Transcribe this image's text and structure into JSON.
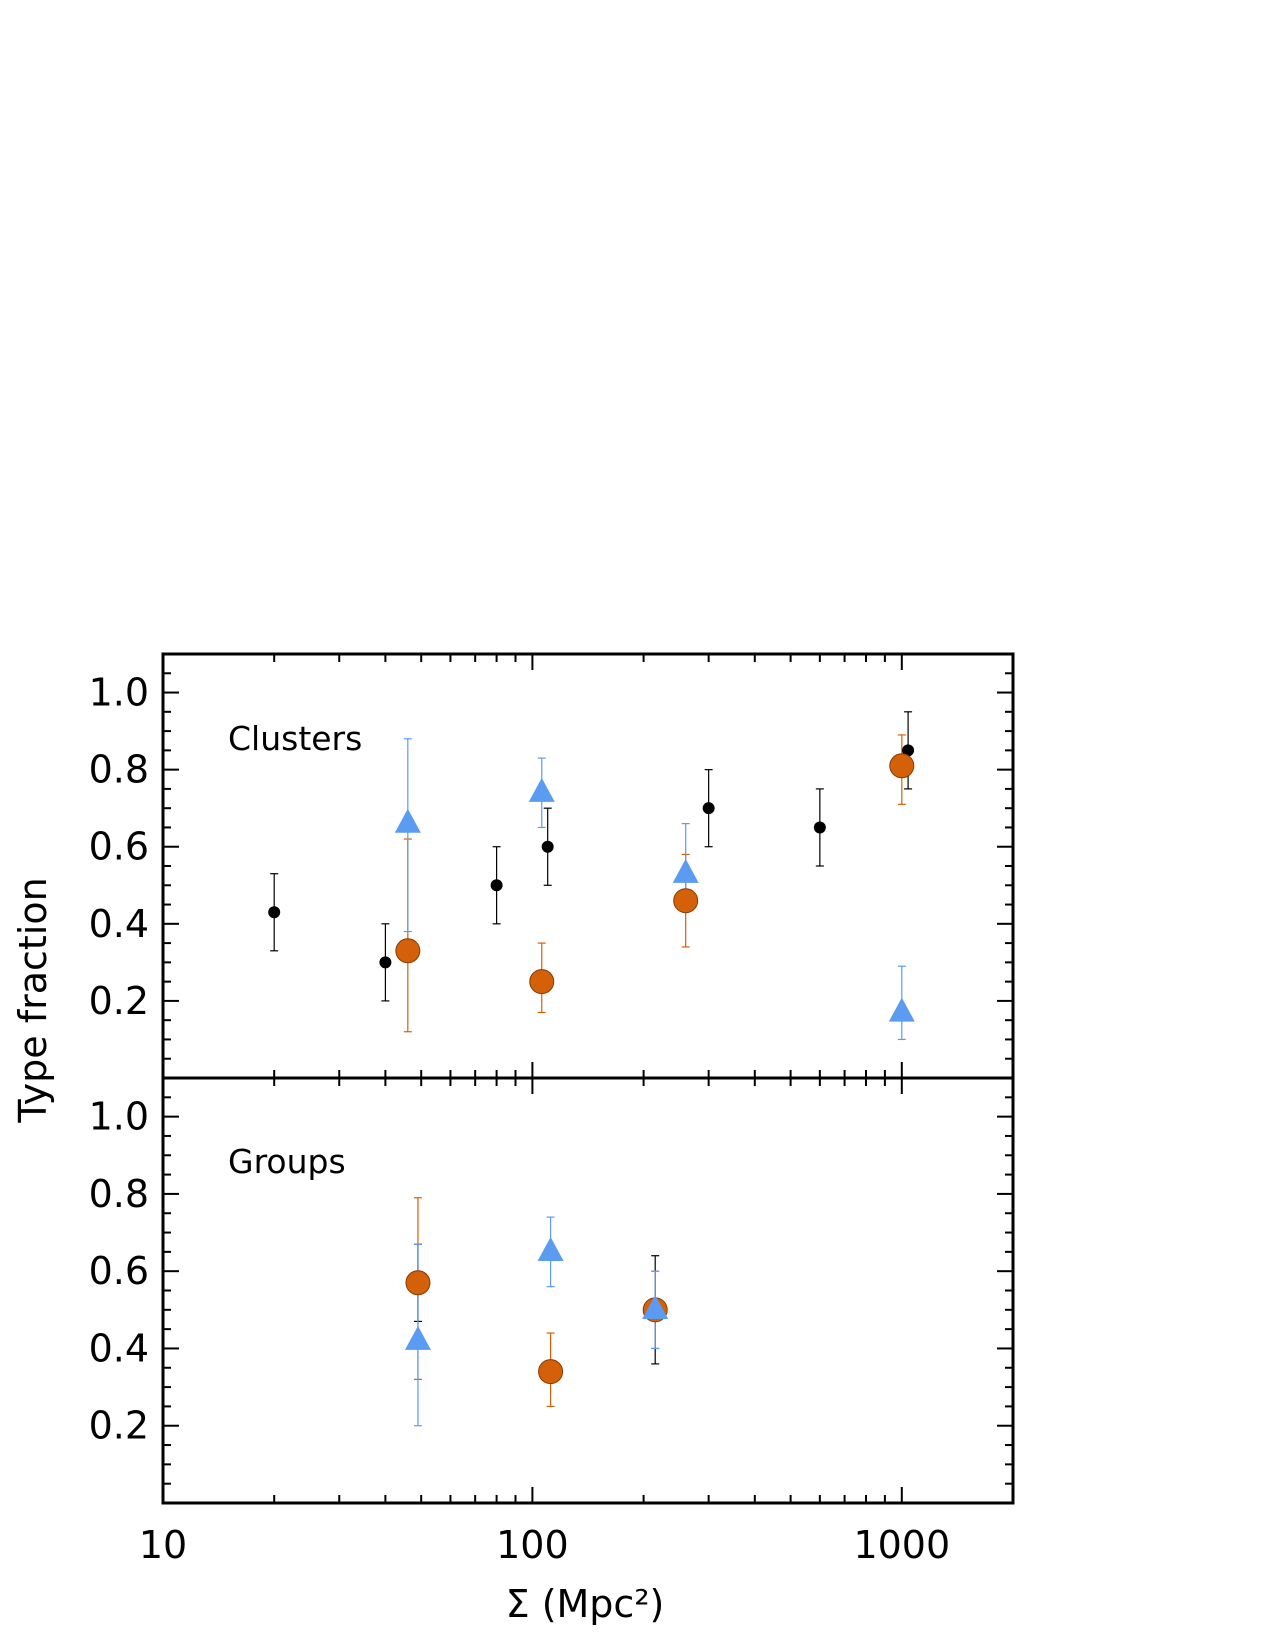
{
  "chart_data": [
    {
      "type": "scatter",
      "panel": "upper",
      "label": "Clusters",
      "xscale": "log",
      "xlim": [
        10,
        2000
      ],
      "ylim": [
        0.0,
        1.1
      ],
      "ylabel": "Type fraction",
      "yticks": [
        "0.2",
        "0.4",
        "0.6",
        "0.8",
        "1.0"
      ],
      "series": [
        {
          "marker": "dot",
          "color": "#000000",
          "points": [
            {
              "x": 20,
              "y": 0.43,
              "lo": 0.33,
              "hi": 0.53
            },
            {
              "x": 40,
              "y": 0.3,
              "lo": 0.2,
              "hi": 0.4
            },
            {
              "x": 80,
              "y": 0.5,
              "lo": 0.4,
              "hi": 0.6
            },
            {
              "x": 110,
              "y": 0.6,
              "lo": 0.5,
              "hi": 0.7
            },
            {
              "x": 300,
              "y": 0.7,
              "lo": 0.6,
              "hi": 0.8
            },
            {
              "x": 600,
              "y": 0.65,
              "lo": 0.55,
              "hi": 0.75
            },
            {
              "x": 1040,
              "y": 0.85,
              "lo": 0.75,
              "hi": 0.95
            }
          ]
        },
        {
          "marker": "circle",
          "color": "#d4600a",
          "points": [
            {
              "x": 46,
              "y": 0.33,
              "lo": 0.12,
              "hi": 0.62
            },
            {
              "x": 106,
              "y": 0.25,
              "lo": 0.17,
              "hi": 0.35
            },
            {
              "x": 260,
              "y": 0.46,
              "lo": 0.34,
              "hi": 0.58
            },
            {
              "x": 1000,
              "y": 0.81,
              "lo": 0.71,
              "hi": 0.89
            }
          ]
        },
        {
          "marker": "triangle",
          "color": "#5b9cf2",
          "points": [
            {
              "x": 46,
              "y": 0.66,
              "lo": 0.38,
              "hi": 0.88
            },
            {
              "x": 106,
              "y": 0.74,
              "lo": 0.65,
              "hi": 0.83
            },
            {
              "x": 260,
              "y": 0.53,
              "lo": 0.43,
              "hi": 0.66
            },
            {
              "x": 1000,
              "y": 0.17,
              "lo": 0.1,
              "hi": 0.29
            }
          ]
        }
      ]
    },
    {
      "type": "scatter",
      "panel": "lower",
      "label": "Groups",
      "xscale": "log",
      "xlim": [
        10,
        2000
      ],
      "ylim": [
        0.0,
        1.1
      ],
      "xlabel": "Σ (Mpc²)",
      "xticks": [
        "10",
        "100",
        "1000"
      ],
      "yticks": [
        "0.2",
        "0.4",
        "0.6",
        "0.8",
        "1.0"
      ],
      "series": [
        {
          "marker": "dot",
          "color": "#000000",
          "points": [
            {
              "x": 49,
              "y": 0.57,
              "lo": 0.47,
              "hi": 0.67
            },
            {
              "x": 215,
              "y": 0.5,
              "lo": 0.36,
              "hi": 0.64
            }
          ]
        },
        {
          "marker": "circle",
          "color": "#d4600a",
          "points": [
            {
              "x": 49,
              "y": 0.57,
              "lo": 0.32,
              "hi": 0.79
            },
            {
              "x": 112,
              "y": 0.34,
              "lo": 0.25,
              "hi": 0.44
            },
            {
              "x": 215,
              "y": 0.5,
              "lo": 0.4,
              "hi": 0.6
            }
          ]
        },
        {
          "marker": "triangle",
          "color": "#5b9cf2",
          "points": [
            {
              "x": 49,
              "y": 0.42,
              "lo": 0.2,
              "hi": 0.67
            },
            {
              "x": 112,
              "y": 0.65,
              "lo": 0.56,
              "hi": 0.74
            },
            {
              "x": 215,
              "y": 0.5,
              "lo": 0.4,
              "hi": 0.6
            }
          ]
        }
      ]
    }
  ]
}
